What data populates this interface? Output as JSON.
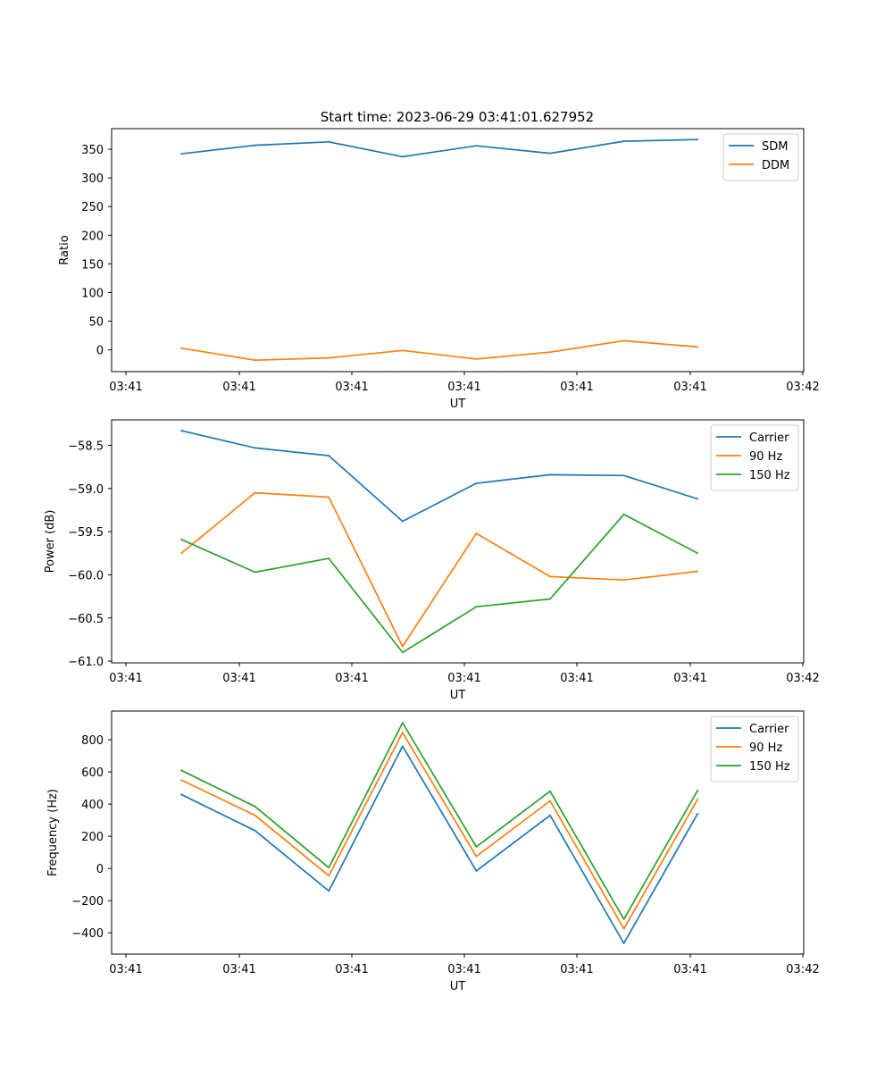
{
  "figure": {
    "title": "Start time: 2023-06-29 03:41:01.627952"
  },
  "chart_data": [
    {
      "type": "line",
      "title": "Start time: 2023-06-29 03:41:01.627952",
      "xlabel": "UT",
      "ylabel": "Ratio",
      "x": [
        1,
        2,
        3,
        4,
        5,
        6,
        7,
        8
      ],
      "x_tick_labels": [
        "03:41",
        "03:41",
        "03:41",
        "03:41",
        "03:41",
        "03:41",
        "03:42"
      ],
      "ylim": [
        -38,
        386
      ],
      "y_ticks": [
        0,
        50,
        100,
        150,
        200,
        250,
        300,
        350
      ],
      "y_tick_labels": [
        "0",
        "50",
        "100",
        "150",
        "200",
        "250",
        "300",
        "350"
      ],
      "legend": "upper-right",
      "series": [
        {
          "name": "SDM",
          "color": "#1f77b4",
          "values": [
            342,
            357,
            363,
            337,
            356,
            343,
            364,
            367
          ]
        },
        {
          "name": "DDM",
          "color": "#ff7f0e",
          "values": [
            3,
            -18,
            -14,
            -1,
            -16,
            -4,
            16,
            5
          ]
        }
      ]
    },
    {
      "type": "line",
      "xlabel": "UT",
      "ylabel": "Power (dB)",
      "x": [
        1,
        2,
        3,
        4,
        5,
        6,
        7,
        8
      ],
      "x_tick_labels": [
        "03:41",
        "03:41",
        "03:41",
        "03:41",
        "03:41",
        "03:41",
        "03:42"
      ],
      "ylim": [
        -61.02,
        -58.205
      ],
      "y_ticks": [
        -61.0,
        -60.5,
        -60.0,
        -59.5,
        -59.0,
        -58.5
      ],
      "y_tick_labels": [
        "−61.0",
        "−60.5",
        "−60.0",
        "−59.5",
        "−59.0",
        "−58.5"
      ],
      "legend": "upper-right",
      "series": [
        {
          "name": "Carrier",
          "color": "#1f77b4",
          "values": [
            -58.33,
            -58.53,
            -58.62,
            -59.38,
            -58.94,
            -58.84,
            -58.85,
            -59.12
          ]
        },
        {
          "name": "90 Hz",
          "color": "#ff7f0e",
          "values": [
            -59.75,
            -59.05,
            -59.1,
            -60.83,
            -59.52,
            -60.02,
            -60.06,
            -59.96
          ]
        },
        {
          "name": "150 Hz",
          "color": "#2ca02c",
          "values": [
            -59.59,
            -59.97,
            -59.81,
            -60.9,
            -60.37,
            -60.28,
            -59.3,
            -59.75
          ]
        }
      ]
    },
    {
      "type": "line",
      "xlabel": "UT",
      "ylabel": "Frequency (Hz)",
      "x": [
        1,
        2,
        3,
        4,
        5,
        6,
        7,
        8
      ],
      "x_tick_labels": [
        "03:41",
        "03:41",
        "03:41",
        "03:41",
        "03:41",
        "03:41",
        "03:42"
      ],
      "ylim": [
        -532,
        978
      ],
      "y_ticks": [
        -400,
        -200,
        0,
        200,
        400,
        600,
        800
      ],
      "y_tick_labels": [
        "−400",
        "−200",
        "0",
        "200",
        "400",
        "600",
        "800"
      ],
      "legend": "upper-right",
      "series": [
        {
          "name": "Carrier",
          "color": "#1f77b4",
          "values": [
            460,
            235,
            -140,
            760,
            -15,
            330,
            -465,
            340
          ]
        },
        {
          "name": "90 Hz",
          "color": "#ff7f0e",
          "values": [
            550,
            330,
            -45,
            845,
            75,
            420,
            -375,
            430
          ]
        },
        {
          "name": "150 Hz",
          "color": "#2ca02c",
          "values": [
            610,
            385,
            5,
            905,
            135,
            480,
            -315,
            485
          ]
        }
      ]
    }
  ]
}
